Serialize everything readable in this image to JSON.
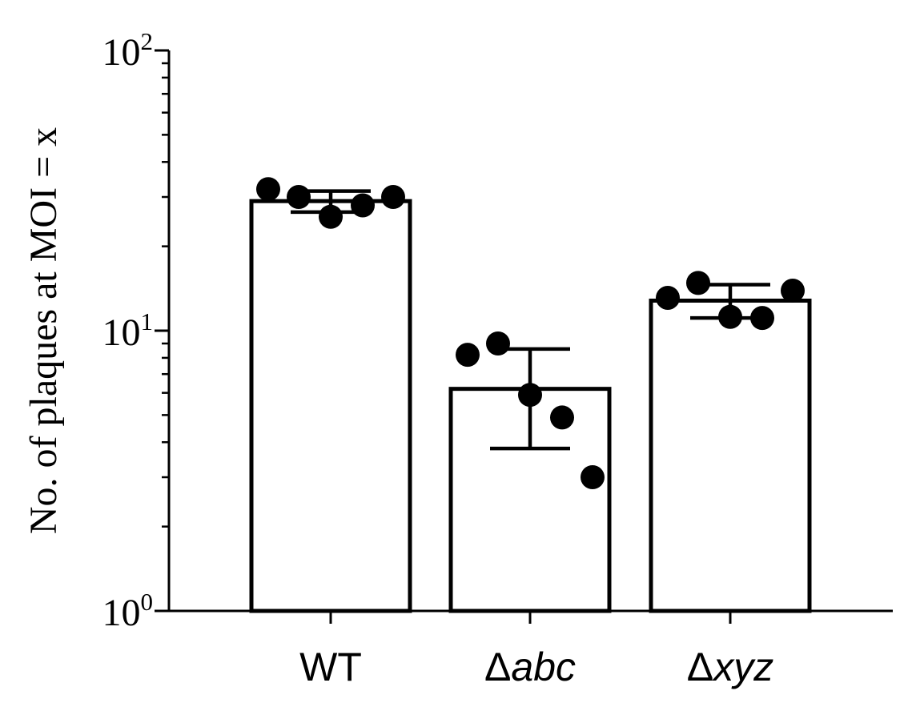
{
  "chart_data": {
    "type": "bar",
    "ylabel": "No. of plaques at MOI = x",
    "yscale": "log",
    "ylim": [
      1,
      100
    ],
    "yticks": [
      {
        "value": 1,
        "base": "10",
        "exp": "0"
      },
      {
        "value": 10,
        "base": "10",
        "exp": "1"
      },
      {
        "value": 100,
        "base": "10",
        "exp": "2"
      }
    ],
    "categories": [
      {
        "prefix": "",
        "italic": "",
        "plain": "WT"
      },
      {
        "prefix": "Δ",
        "italic": "abc",
        "plain": ""
      },
      {
        "prefix": "Δ",
        "italic": "xyz",
        "plain": ""
      }
    ],
    "values": [
      29,
      6.2,
      12.8
    ],
    "error_low": [
      26.5,
      3.8,
      11.1
    ],
    "error_high": [
      31.5,
      8.6,
      14.6
    ],
    "points": [
      [
        32,
        30,
        25.5,
        28,
        30
      ],
      [
        8.2,
        9.0,
        5.9,
        4.9,
        3.0
      ],
      [
        13.1,
        14.8,
        11.2,
        11.1,
        13.9
      ]
    ],
    "grid": false,
    "legend": "none"
  }
}
